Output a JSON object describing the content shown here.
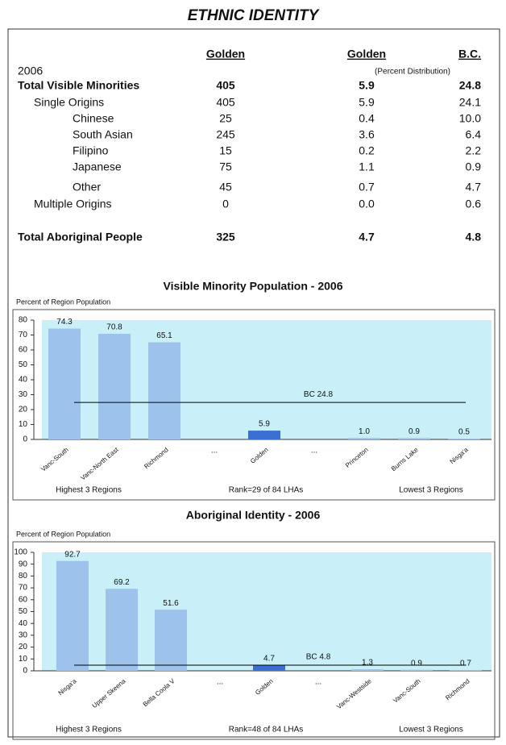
{
  "header": {
    "title": "ETHNIC IDENTITY"
  },
  "table": {
    "columns": [
      "Golden",
      "Golden",
      "B.C."
    ],
    "year": "2006",
    "subheader": "(Percent Distribution)",
    "rows": [
      [
        "Total Visible Minorities",
        "405",
        "5.9",
        "24.8"
      ],
      [
        "Single Origins",
        "405",
        "5.9",
        "24.1"
      ],
      [
        "Chinese",
        "25",
        "0.4",
        "10.0"
      ],
      [
        "South Asian",
        "245",
        "3.6",
        "6.4"
      ],
      [
        "Filipino",
        "15",
        "0.2",
        "2.2"
      ],
      [
        "Japanese",
        "75",
        "1.1",
        "0.9"
      ],
      [
        "Other",
        "45",
        "0.7",
        "4.7"
      ],
      [
        "Multiple Origins",
        "0",
        "0.0",
        "0.6"
      ],
      [
        "Total Aboriginal People",
        "325",
        "4.7",
        "4.8"
      ]
    ]
  },
  "chart_data": [
    {
      "type": "bar",
      "title": "Visible Minority Population - 2006",
      "y_label": "Percent of Region Population",
      "categories": [
        "Vanc-South",
        "Vanc-North East",
        "Richmond",
        "...",
        "Golden",
        "...",
        "Princeton",
        "Burns Lake",
        "Nisga'a"
      ],
      "values": [
        74.3,
        70.8,
        65.1,
        null,
        5.9,
        null,
        1.0,
        0.9,
        0.5
      ],
      "value_labels": [
        "74.3",
        "70.8",
        "65.1",
        null,
        "5.9",
        null,
        "1.0",
        "0.9",
        "0.5"
      ],
      "colors": [
        "#9dc3ec",
        "#9dc3ec",
        "#9dc3ec",
        null,
        "#3b6fd4",
        null,
        "#9dc3ec",
        "#9dc3ec",
        "#9dc3ec"
      ],
      "ylim": [
        0,
        80
      ],
      "yticks": [
        0,
        10,
        20,
        30,
        40,
        50,
        60,
        70,
        80
      ],
      "reference_line": {
        "label": "BC 24.8",
        "value": 24.8
      },
      "notes": [
        "Highest 3 Regions",
        "Rank=29 of 84 LHAs",
        "Lowest 3 Regions"
      ]
    },
    {
      "type": "bar",
      "title": "Aboriginal Identity - 2006",
      "y_label": "Percent of Region Population",
      "categories": [
        "Nisga'a",
        "Upper Skeena",
        "Bella Coola V",
        "...",
        "Golden",
        "...",
        "Vanc-Westside",
        "Vanc-South",
        "Richmond"
      ],
      "values": [
        92.7,
        69.2,
        51.6,
        null,
        4.7,
        null,
        1.3,
        0.9,
        0.7
      ],
      "value_labels": [
        "92.7",
        "69.2",
        "51.6",
        null,
        "4.7",
        null,
        "1.3",
        "0.9",
        "0.7"
      ],
      "colors": [
        "#9dc3ec",
        "#9dc3ec",
        "#9dc3ec",
        null,
        "#3b6fd4",
        null,
        "#9dc3ec",
        "#9dc3ec",
        "#9dc3ec"
      ],
      "ylim": [
        0,
        100
      ],
      "yticks": [
        0,
        10,
        20,
        30,
        40,
        50,
        60,
        70,
        80,
        90,
        100
      ],
      "reference_line": {
        "label": "BC 4.8",
        "value": 4.8
      },
      "notes": [
        "Highest 3 Regions",
        "Rank=48 of 84 LHAs",
        "Lowest 3 Regions"
      ]
    }
  ]
}
